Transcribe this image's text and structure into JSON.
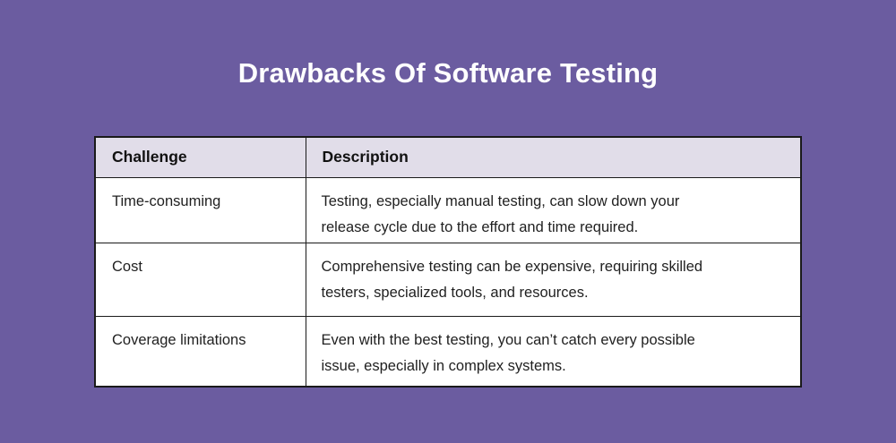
{
  "title": "Drawbacks Of Software Testing",
  "colors": {
    "background": "#6B5CA0",
    "header_bg": "#E1DDE9",
    "body_bg": "#FFFFFF",
    "border": "#1A1A1A",
    "title_text": "#FFFFFF",
    "body_text": "#1F1F1F"
  },
  "table": {
    "columns": [
      "Challenge",
      "Description"
    ],
    "rows": [
      {
        "challenge": "Time-consuming",
        "description_lines": [
          "Testing, especially manual testing, can slow down your",
          "release cycle due to the effort and time required."
        ]
      },
      {
        "challenge": "Cost",
        "description_lines": [
          "Comprehensive testing can be expensive, requiring skilled",
          "testers, specialized tools, and resources."
        ]
      },
      {
        "challenge": "Coverage limitations",
        "description_lines": [
          "Even with the best testing, you can’t catch every possible",
          "issue, especially in complex systems."
        ]
      }
    ]
  }
}
